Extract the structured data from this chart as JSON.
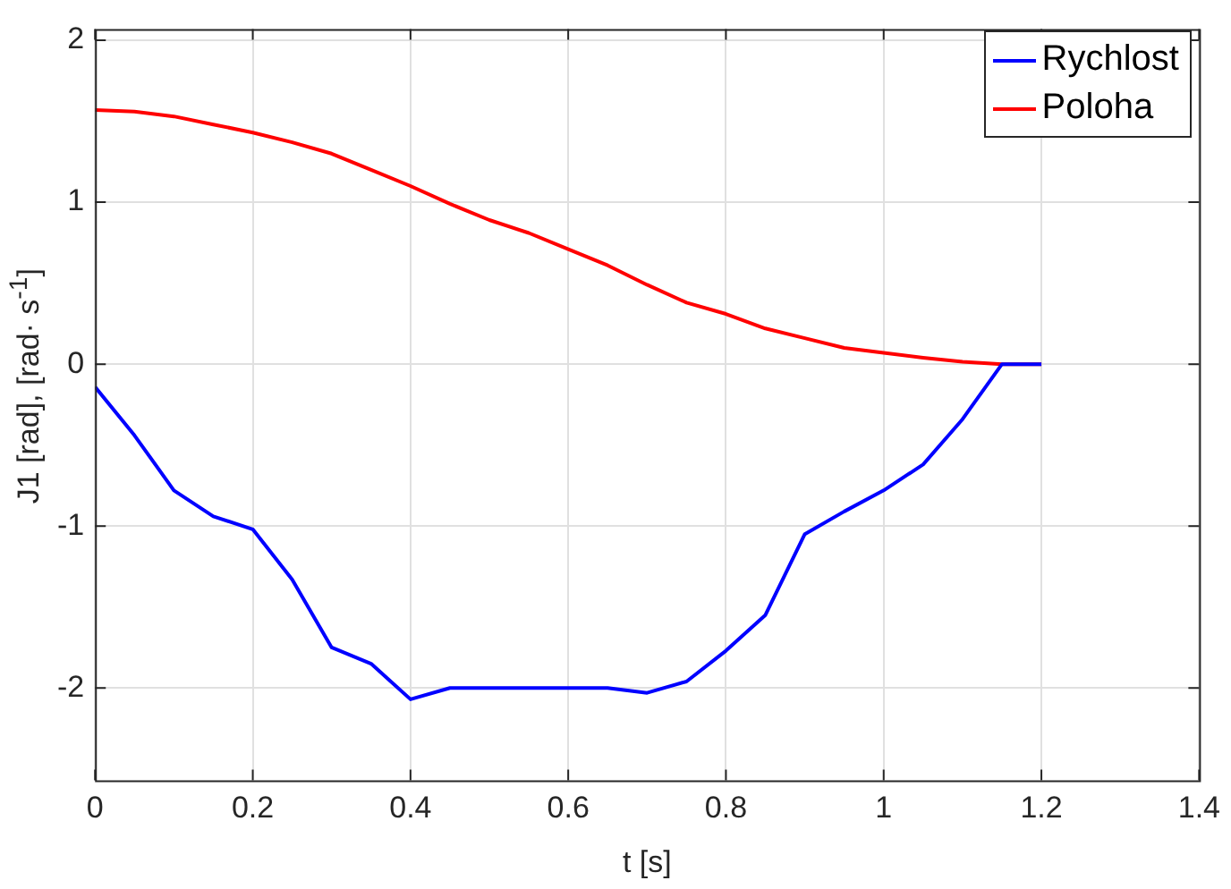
{
  "chart_data": {
    "type": "line",
    "xlabel": "t [s]",
    "ylabel": "J1 [rad], [rad· s$^{-1}$]",
    "x": [
      0,
      0.05,
      0.1,
      0.15,
      0.2,
      0.25,
      0.3,
      0.35,
      0.4,
      0.45,
      0.5,
      0.55,
      0.6,
      0.65,
      0.7,
      0.75,
      0.8,
      0.85,
      0.9,
      0.95,
      1.0,
      1.05,
      1.1,
      1.15,
      1.2
    ],
    "series": [
      {
        "name": "Rychlost",
        "color": "#0000ff",
        "values": [
          -0.14,
          -0.44,
          -0.78,
          -0.94,
          -1.02,
          -1.33,
          -1.75,
          -1.85,
          -2.07,
          -2.0,
          -2.0,
          -2.0,
          -2.0,
          -2.0,
          -2.03,
          -1.96,
          -1.77,
          -1.55,
          -1.05,
          -0.91,
          -0.78,
          -0.62,
          -0.34,
          0,
          0
        ]
      },
      {
        "name": "Poloha",
        "color": "#ff0000",
        "values": [
          1.57,
          1.56,
          1.53,
          1.48,
          1.43,
          1.37,
          1.3,
          1.2,
          1.1,
          0.99,
          0.89,
          0.81,
          0.71,
          0.61,
          0.49,
          0.38,
          0.31,
          0.22,
          0.16,
          0.1,
          0.07,
          0.04,
          0.015,
          0,
          0
        ]
      }
    ],
    "xlim": [
      0,
      1.4
    ],
    "xticks": [
      0,
      0.2,
      0.4,
      0.6,
      0.8,
      1,
      1.2,
      1.4
    ],
    "ylim": [
      -2.57,
      2.07
    ],
    "yticks": [
      -2,
      -1,
      0,
      1,
      2
    ],
    "grid": true,
    "legend": "top right",
    "marker": "none",
    "line_style": "solid"
  }
}
